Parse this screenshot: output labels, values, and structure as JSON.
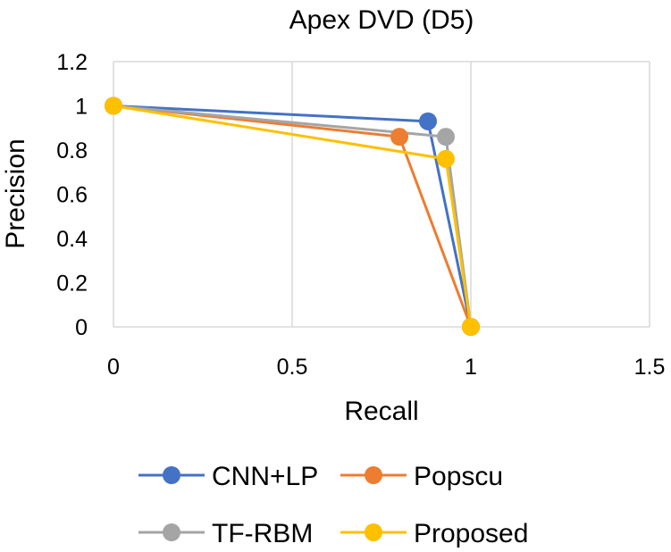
{
  "chart_data": {
    "type": "scatter",
    "title": "Apex DVD (D5)",
    "xlabel": "Recall",
    "ylabel": "Precision",
    "xlim": [
      0,
      1.5
    ],
    "ylim": [
      0,
      1.2
    ],
    "x_ticks": [
      "0",
      "0.5",
      "1",
      "1.5"
    ],
    "y_ticks": [
      "0",
      "0.2",
      "0.4",
      "0.6",
      "0.8",
      "1",
      "1.2"
    ],
    "x_tick_values": [
      0,
      0.5,
      1,
      1.5
    ],
    "y_tick_values": [
      0,
      0.2,
      0.4,
      0.6,
      0.8,
      1,
      1.2
    ],
    "grid": "vertical",
    "legend_position": "bottom",
    "series": [
      {
        "name": "CNN+LP",
        "color": "#4472c4",
        "x": [
          0,
          0.88,
          1.0
        ],
        "y": [
          1.0,
          0.93,
          0.0
        ]
      },
      {
        "name": "Popscu",
        "color": "#ed7d31",
        "x": [
          0,
          0.8,
          1.0
        ],
        "y": [
          1.0,
          0.86,
          0.0
        ]
      },
      {
        "name": "TF-RBM",
        "color": "#a5a5a5",
        "x": [
          0,
          0.93,
          1.0
        ],
        "y": [
          1.0,
          0.86,
          0.0
        ]
      },
      {
        "name": "Proposed",
        "color": "#ffc000",
        "x": [
          0,
          0.93,
          1.0
        ],
        "y": [
          1.0,
          0.76,
          0.0
        ]
      }
    ]
  }
}
